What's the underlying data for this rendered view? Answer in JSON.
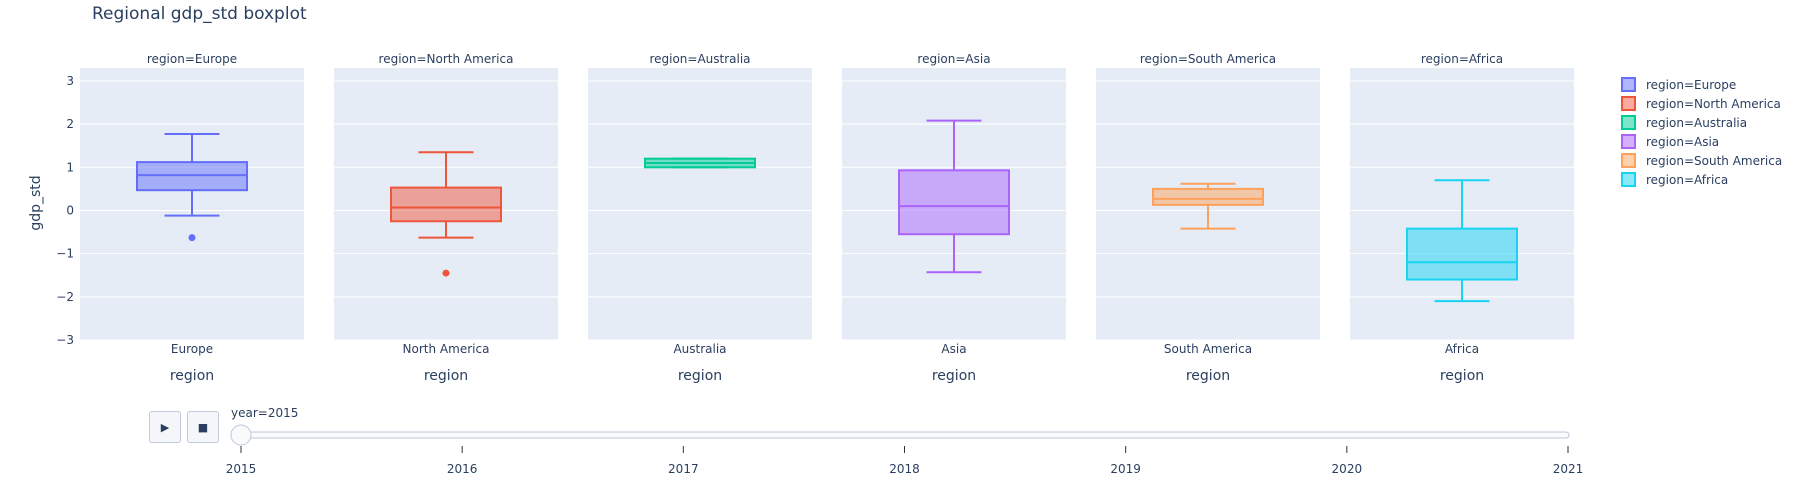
{
  "title": "Regional gdp_std boxplot",
  "colors": {
    "Europe": "#636efa",
    "North America": "#EF553B",
    "Australia": "#00cc96",
    "Asia": "#ab63fa",
    "South America": "#FFA15A",
    "Africa": "#19d3f3"
  },
  "chart_data": {
    "type": "box",
    "title": "Regional gdp_std boxplot",
    "xlabel": "region",
    "ylabel": "gdp_std",
    "ylim": [
      -3,
      3.3
    ],
    "yticks": [
      -3,
      -2,
      -1,
      0,
      1,
      2,
      3
    ],
    "legend_placement": "right",
    "grid": true,
    "facets": [
      {
        "label": "region=Europe",
        "category": "Europe",
        "name": "region=Europe",
        "min": -0.12,
        "q1": 0.47,
        "median": 0.82,
        "q3": 1.12,
        "max": 1.77,
        "outliers": [
          -0.63
        ]
      },
      {
        "label": "region=North America",
        "category": "North America",
        "name": "region=North America",
        "min": -0.63,
        "q1": -0.25,
        "median": 0.07,
        "q3": 0.53,
        "max": 1.35,
        "outliers": [
          -1.45
        ]
      },
      {
        "label": "region=Australia",
        "category": "Australia",
        "name": "region=Australia",
        "min": 1.0,
        "q1": 1.0,
        "median": 1.1,
        "q3": 1.2,
        "max": 1.2,
        "outliers": []
      },
      {
        "label": "region=Asia",
        "category": "Asia",
        "name": "region=Asia",
        "min": -1.43,
        "q1": -0.55,
        "median": 0.1,
        "q3": 0.93,
        "max": 2.08,
        "outliers": []
      },
      {
        "label": "region=South America",
        "category": "South America",
        "name": "region=South America",
        "min": -0.42,
        "q1": 0.13,
        "median": 0.27,
        "q3": 0.5,
        "max": 0.62,
        "outliers": []
      },
      {
        "label": "region=Africa",
        "category": "Africa",
        "name": "region=Africa",
        "min": -2.1,
        "q1": -1.6,
        "median": -1.2,
        "q3": -0.42,
        "max": 0.7,
        "outliers": []
      }
    ]
  },
  "slider": {
    "current_label": "year=2015",
    "steps": [
      "2015",
      "2016",
      "2017",
      "2018",
      "2019",
      "2020",
      "2021"
    ],
    "value": "2015"
  }
}
